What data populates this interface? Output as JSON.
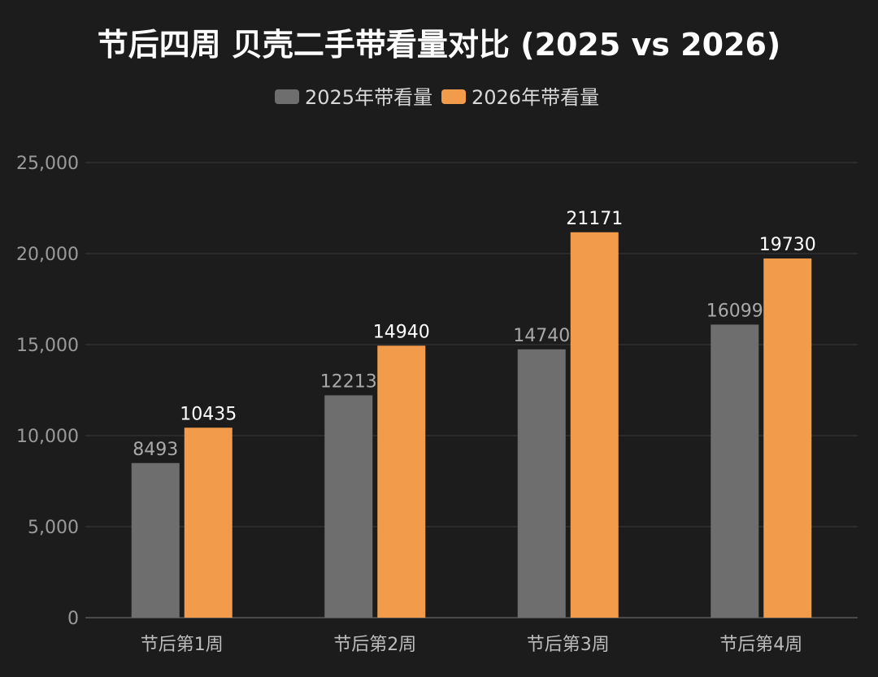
{
  "chart_data": {
    "type": "bar",
    "title": "节后四周 贝壳二手带看量对比 (2025 vs 2026)",
    "categories": [
      "节后第1周",
      "节后第2周",
      "节后第3周",
      "节后第4周"
    ],
    "series": [
      {
        "name": "2025年带看量",
        "values": [
          8493,
          12213,
          14740,
          16099
        ],
        "color": "#6e6e6e"
      },
      {
        "name": "2026年带看量",
        "values": [
          10435,
          14940,
          21171,
          19730
        ],
        "color": "#f29b4b"
      }
    ],
    "yticks": [
      "0",
      "5,000",
      "10,000",
      "15,000",
      "20,000",
      "25,000"
    ],
    "ylim": [
      0,
      25000
    ],
    "grid": true,
    "legend_position": "top-center",
    "show_data_labels": true
  }
}
